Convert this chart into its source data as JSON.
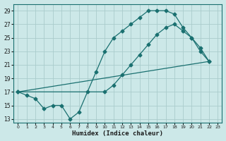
{
  "xlabel": "Humidex (Indice chaleur)",
  "bg_color": "#cce8e8",
  "grid_color": "#aacccc",
  "line_color": "#1a7070",
  "xlim": [
    -0.5,
    23.5
  ],
  "ylim": [
    12.5,
    30
  ],
  "xticks": [
    0,
    1,
    2,
    3,
    4,
    5,
    6,
    7,
    8,
    9,
    10,
    11,
    12,
    13,
    14,
    15,
    16,
    17,
    18,
    19,
    20,
    21,
    22,
    23
  ],
  "yticks": [
    13,
    15,
    17,
    19,
    21,
    23,
    25,
    27,
    29
  ],
  "line1_x": [
    0,
    1,
    2,
    3,
    4,
    5,
    6,
    7,
    8,
    9,
    10,
    11,
    12,
    13,
    14,
    15,
    16,
    17,
    18,
    19,
    20,
    21,
    22
  ],
  "line1_y": [
    17,
    16.5,
    16,
    14.5,
    15,
    15,
    13,
    14,
    17,
    20,
    23,
    25,
    26,
    27,
    28,
    29,
    29,
    29,
    28.5,
    26.5,
    25,
    23,
    21.5
  ],
  "line2_x": [
    0,
    22
  ],
  "line2_y": [
    17,
    21.5
  ],
  "line3_x": [
    0,
    10,
    11,
    12,
    13,
    14,
    15,
    16,
    17,
    18,
    19,
    20,
    21,
    22
  ],
  "line3_y": [
    17,
    17,
    18,
    19.5,
    21,
    22.5,
    24,
    25.5,
    26.5,
    27,
    26,
    25,
    23.5,
    21.5
  ]
}
